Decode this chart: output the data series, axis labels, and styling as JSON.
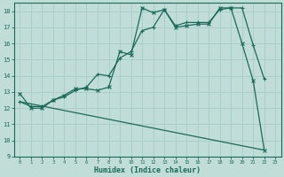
{
  "title": "",
  "xlabel": "Humidex (Indice chaleur)",
  "ylabel": "",
  "background_color": "#c0ddd8",
  "line_color": "#1a6b5a",
  "grid_color": "#a8ccc8",
  "ylim": [
    9,
    18.5
  ],
  "xlim": [
    -0.5,
    23.5
  ],
  "yticks": [
    9,
    10,
    11,
    12,
    13,
    14,
    15,
    16,
    17,
    18
  ],
  "xticks": [
    0,
    1,
    2,
    3,
    4,
    5,
    6,
    7,
    8,
    9,
    10,
    11,
    12,
    13,
    14,
    15,
    16,
    17,
    18,
    19,
    20,
    21,
    22,
    23
  ],
  "line1_x": [
    0,
    1,
    2,
    3,
    4,
    5,
    6,
    7,
    8,
    9,
    10,
    11,
    12,
    13,
    14,
    15,
    16,
    17,
    18,
    19,
    20,
    21,
    22
  ],
  "line1_y": [
    12.9,
    12.0,
    12.0,
    12.5,
    12.8,
    13.2,
    13.2,
    13.1,
    13.3,
    15.5,
    15.3,
    18.2,
    17.9,
    18.1,
    17.0,
    17.1,
    17.2,
    17.2,
    18.2,
    18.2,
    16.0,
    13.7,
    9.4
  ],
  "line2_x": [
    0,
    1,
    2,
    3,
    4,
    5,
    6,
    7,
    8,
    9,
    10,
    11,
    12,
    13,
    14,
    15,
    16,
    17,
    18,
    19,
    20,
    21,
    22
  ],
  "line2_y": [
    12.4,
    12.1,
    12.1,
    12.5,
    12.7,
    13.1,
    13.3,
    14.1,
    14.0,
    15.1,
    15.5,
    16.8,
    17.0,
    18.1,
    17.1,
    17.3,
    17.3,
    17.3,
    18.1,
    18.2,
    18.2,
    15.9,
    13.8
  ],
  "line3_x": [
    0,
    22
  ],
  "line3_y": [
    12.4,
    9.4
  ]
}
